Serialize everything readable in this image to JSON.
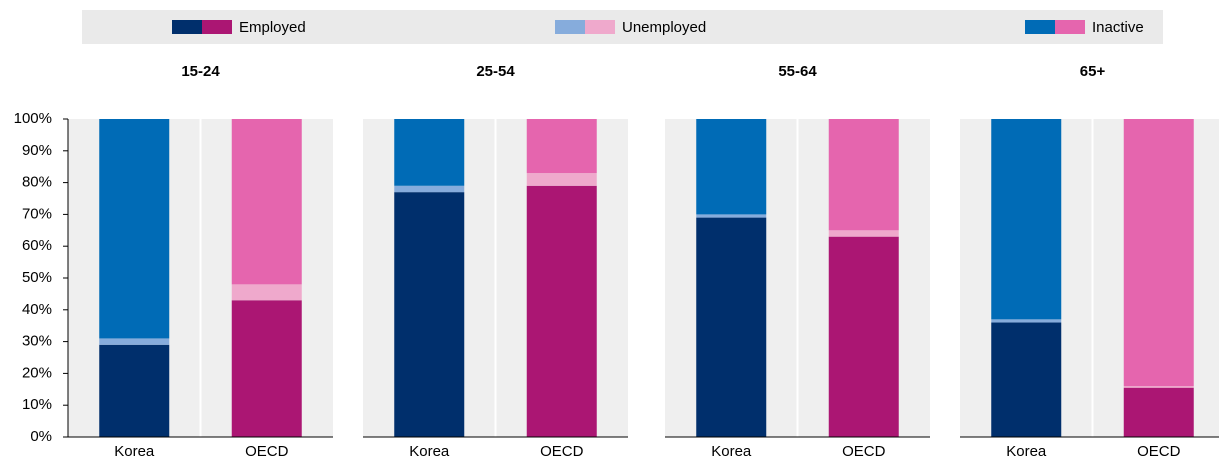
{
  "legend": [
    {
      "name": "Employed",
      "colors": [
        "#002f6c",
        "#ab1673"
      ]
    },
    {
      "name": "Unemployed",
      "colors": [
        "#86acdc",
        "#efa9cc"
      ]
    },
    {
      "name": "Inactive",
      "colors": [
        "#006bb6",
        "#e565ae"
      ]
    }
  ],
  "chart_data": [
    {
      "type": "stacked-bar",
      "title": "15-24",
      "categories": [
        "Korea",
        "OECD"
      ],
      "series": [
        {
          "values": [
            29,
            43
          ]
        },
        {
          "values": [
            2,
            5
          ]
        },
        {
          "values": [
            69,
            52
          ]
        }
      ],
      "ylim": [
        0,
        100
      ],
      "yticks": [
        {
          "value": 0,
          "label": "0%"
        },
        {
          "value": 10,
          "label": "10%"
        },
        {
          "value": 20,
          "label": "20%"
        },
        {
          "value": 30,
          "label": "30%"
        },
        {
          "value": 40,
          "label": "40%"
        },
        {
          "value": 50,
          "label": "50%"
        },
        {
          "value": 60,
          "label": "60%"
        },
        {
          "value": 70,
          "label": "70%"
        },
        {
          "value": 80,
          "label": "80%"
        },
        {
          "value": 90,
          "label": "90%"
        },
        {
          "value": 100,
          "label": "100%"
        }
      ]
    },
    {
      "type": "stacked-bar",
      "title": "25-54",
      "categories": [
        "Korea",
        "OECD"
      ],
      "series": [
        {
          "values": [
            77,
            79
          ]
        },
        {
          "values": [
            2,
            4
          ]
        },
        {
          "values": [
            21,
            17
          ]
        }
      ],
      "ylim": [
        0,
        100
      ]
    },
    {
      "type": "stacked-bar",
      "title": "55-64",
      "categories": [
        "Korea",
        "OECD"
      ],
      "series": [
        {
          "values": [
            69,
            63
          ]
        },
        {
          "values": [
            1,
            2
          ]
        },
        {
          "values": [
            30,
            35
          ]
        }
      ],
      "ylim": [
        0,
        100
      ]
    },
    {
      "type": "stacked-bar",
      "title": "65+",
      "categories": [
        "Korea",
        "OECD"
      ],
      "series": [
        {
          "values": [
            36,
            15.5
          ]
        },
        {
          "values": [
            1,
            0.5
          ]
        },
        {
          "values": [
            63,
            84
          ]
        }
      ],
      "ylim": [
        0,
        100
      ]
    }
  ]
}
